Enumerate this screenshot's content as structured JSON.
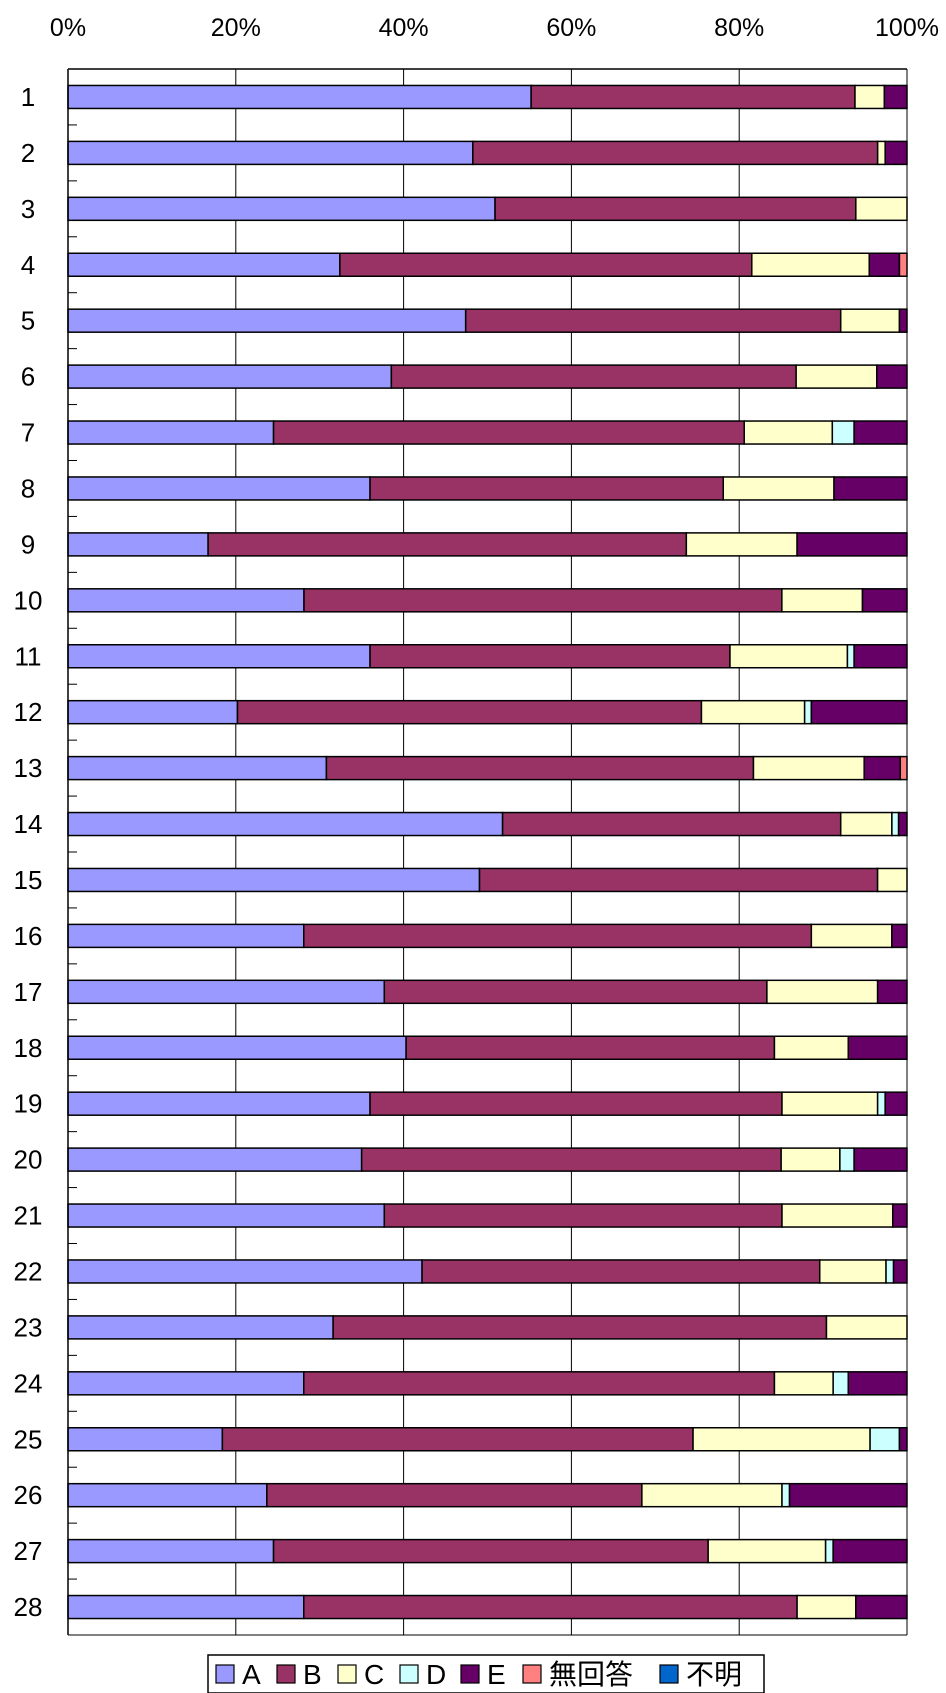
{
  "chart_data": {
    "type": "bar",
    "orientation": "horizontal",
    "stacked": "percent",
    "xlim": [
      0,
      100
    ],
    "x_ticks": [
      "0%",
      "20%",
      "40%",
      "60%",
      "80%",
      "100%"
    ],
    "x_tick_values": [
      0,
      20,
      40,
      60,
      80,
      100
    ],
    "grid": true,
    "legend_position": "bottom",
    "categories": [
      "1",
      "2",
      "3",
      "4",
      "5",
      "6",
      "7",
      "8",
      "9",
      "10",
      "11",
      "12",
      "13",
      "14",
      "15",
      "16",
      "17",
      "18",
      "19",
      "20",
      "21",
      "22",
      "23",
      "24",
      "25",
      "26",
      "27",
      "28"
    ],
    "series": [
      {
        "name": "A",
        "color": "#9999ff",
        "values": [
          55.2,
          48.3,
          50.9,
          32.4,
          47.4,
          38.5,
          24.5,
          36.0,
          16.7,
          28.1,
          36.0,
          20.2,
          30.8,
          51.8,
          49.0,
          28.1,
          37.7,
          40.3,
          36.0,
          35.0,
          37.7,
          42.2,
          31.6,
          28.1,
          18.4,
          23.7,
          24.5,
          28.1
        ]
      },
      {
        "name": "B",
        "color": "#993366",
        "values": [
          38.6,
          48.3,
          43.0,
          49.1,
          44.7,
          48.2,
          56.1,
          42.1,
          57.0,
          56.9,
          42.9,
          55.3,
          50.9,
          40.3,
          47.4,
          60.5,
          45.6,
          43.9,
          49.1,
          50.0,
          47.4,
          47.4,
          58.8,
          56.1,
          56.1,
          44.7,
          51.8,
          58.8
        ]
      },
      {
        "name": "C",
        "color": "#ffffcc",
        "values": [
          3.5,
          0.9,
          6.1,
          14.0,
          7.0,
          9.6,
          10.5,
          13.2,
          13.2,
          9.6,
          14.0,
          12.3,
          13.2,
          6.1,
          3.5,
          9.6,
          13.2,
          8.8,
          11.4,
          7.0,
          13.2,
          7.9,
          9.6,
          7.0,
          21.1,
          16.7,
          14.0,
          7.0
        ]
      },
      {
        "name": "D",
        "color": "#ccffff",
        "values": [
          0,
          0,
          0,
          0,
          0,
          0,
          2.6,
          0,
          0,
          0,
          0.8,
          0.8,
          0,
          0.8,
          0,
          0,
          0,
          0,
          0.9,
          1.7,
          0,
          0.9,
          0,
          1.8,
          3.5,
          0.9,
          0.9,
          0
        ]
      },
      {
        "name": "E",
        "color": "#660066",
        "values": [
          2.7,
          2.6,
          0,
          3.6,
          0.9,
          3.6,
          6.3,
          8.7,
          13.1,
          5.3,
          6.3,
          11.4,
          4.3,
          1.0,
          0,
          1.8,
          3.5,
          7.0,
          2.6,
          6.3,
          1.7,
          1.6,
          0,
          7.0,
          0.9,
          14.0,
          8.8,
          6.1
        ]
      },
      {
        "name": "無回答",
        "color": "#ff8080",
        "values": [
          0,
          0,
          0,
          0.9,
          0,
          0,
          0,
          0,
          0,
          0,
          0,
          0,
          0.8,
          0,
          0,
          0,
          0,
          0,
          0,
          0,
          0,
          0,
          0,
          0,
          0,
          0,
          0,
          0
        ]
      },
      {
        "name": "不明",
        "color": "#0066cc",
        "values": [
          0,
          0,
          0,
          0,
          0,
          0,
          0,
          0,
          0,
          0,
          0,
          0,
          0,
          0,
          0,
          0,
          0,
          0,
          0,
          0,
          0,
          0,
          0,
          0,
          0,
          0,
          0,
          0
        ]
      }
    ]
  }
}
